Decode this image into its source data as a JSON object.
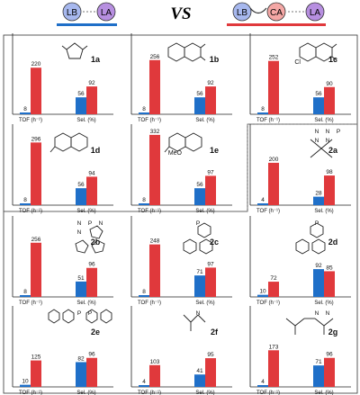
{
  "header": {
    "left_donor": "LB",
    "left_acceptor": "LA",
    "vs_label": "VS",
    "right_donor": "LB",
    "right_linker": "CA",
    "right_acceptor": "LA",
    "colors": {
      "blue": "#1f6fc8",
      "red": "#e0393c",
      "purple": "#b78fe0",
      "lb_fill": "#a7b8ee",
      "ca_fill": "#f4a7a5"
    }
  },
  "chart_data": [
    {
      "type": "bar",
      "label": "1a",
      "categories": [
        "TOF (h⁻¹)",
        "Sel. (%)"
      ],
      "series": [
        {
          "values": [
            8,
            56
          ]
        },
        {
          "values": [
            220,
            92
          ]
        }
      ]
    },
    {
      "type": "bar",
      "label": "1b",
      "categories": [
        "TOF (h⁻¹)",
        "Sel. (%)"
      ],
      "series": [
        {
          "values": [
            8,
            56
          ]
        },
        {
          "values": [
            256,
            92
          ]
        }
      ]
    },
    {
      "type": "bar",
      "label": "1c",
      "categories": [
        "TOF (h⁻¹)",
        "Sel. (%)"
      ],
      "series": [
        {
          "values": [
            8,
            56
          ]
        },
        {
          "values": [
            252,
            90
          ]
        }
      ],
      "substituent": "Cl"
    },
    {
      "type": "bar",
      "label": "1d",
      "categories": [
        "TOF (h⁻¹)",
        "Sel. (%)"
      ],
      "series": [
        {
          "values": [
            8,
            56
          ]
        },
        {
          "values": [
            296,
            94
          ]
        }
      ]
    },
    {
      "type": "bar",
      "label": "1e",
      "categories": [
        "TOF (h⁻¹)",
        "Sel. (%)"
      ],
      "series": [
        {
          "values": [
            8,
            56
          ]
        },
        {
          "values": [
            332,
            97
          ]
        }
      ],
      "substituent": "MeO"
    },
    {
      "type": "bar",
      "label": "2a",
      "categories": [
        "TOF (h⁻¹)",
        "Sel. (%)"
      ],
      "series": [
        {
          "values": [
            4,
            28
          ]
        },
        {
          "values": [
            200,
            98
          ]
        }
      ],
      "atoms": [
        "N",
        "N",
        "P",
        "N",
        "N"
      ]
    },
    {
      "type": "bar",
      "label": "2b",
      "categories": [
        "TOF (h⁻¹)",
        "Sel. (%)"
      ],
      "series": [
        {
          "values": [
            8,
            51
          ]
        },
        {
          "values": [
            256,
            96
          ]
        }
      ],
      "atoms": [
        "N",
        "P",
        "N",
        "N"
      ]
    },
    {
      "type": "bar",
      "label": "2c",
      "categories": [
        "TOF (h⁻¹)",
        "Sel. (%)"
      ],
      "series": [
        {
          "values": [
            8,
            71
          ]
        },
        {
          "values": [
            248,
            97
          ]
        }
      ],
      "atoms": [
        "P"
      ]
    },
    {
      "type": "bar",
      "label": "2d",
      "categories": [
        "TOF (h⁻¹)",
        "Sel. (%)"
      ],
      "series": [
        {
          "values": [
            10,
            92
          ]
        },
        {
          "values": [
            72,
            85
          ]
        }
      ],
      "atoms": [
        "P"
      ]
    },
    {
      "type": "bar",
      "label": "2e",
      "categories": [
        "TOF (h⁻¹)",
        "Sel. (%)"
      ],
      "series": [
        {
          "values": [
            10,
            82
          ]
        },
        {
          "values": [
            125,
            96
          ]
        }
      ],
      "atoms": [
        "P",
        "P"
      ]
    },
    {
      "type": "bar",
      "label": "2f",
      "categories": [
        "TOF (h⁻¹)",
        "Sel. (%)"
      ],
      "series": [
        {
          "values": [
            4,
            41
          ]
        },
        {
          "values": [
            103,
            95
          ]
        }
      ],
      "atoms": [
        "N"
      ]
    },
    {
      "type": "bar",
      "label": "2g",
      "categories": [
        "TOF (h⁻¹)",
        "Sel. (%)"
      ],
      "series": [
        {
          "values": [
            4,
            71
          ]
        },
        {
          "values": [
            173,
            96
          ]
        }
      ],
      "atoms": [
        "N",
        "N"
      ]
    }
  ]
}
